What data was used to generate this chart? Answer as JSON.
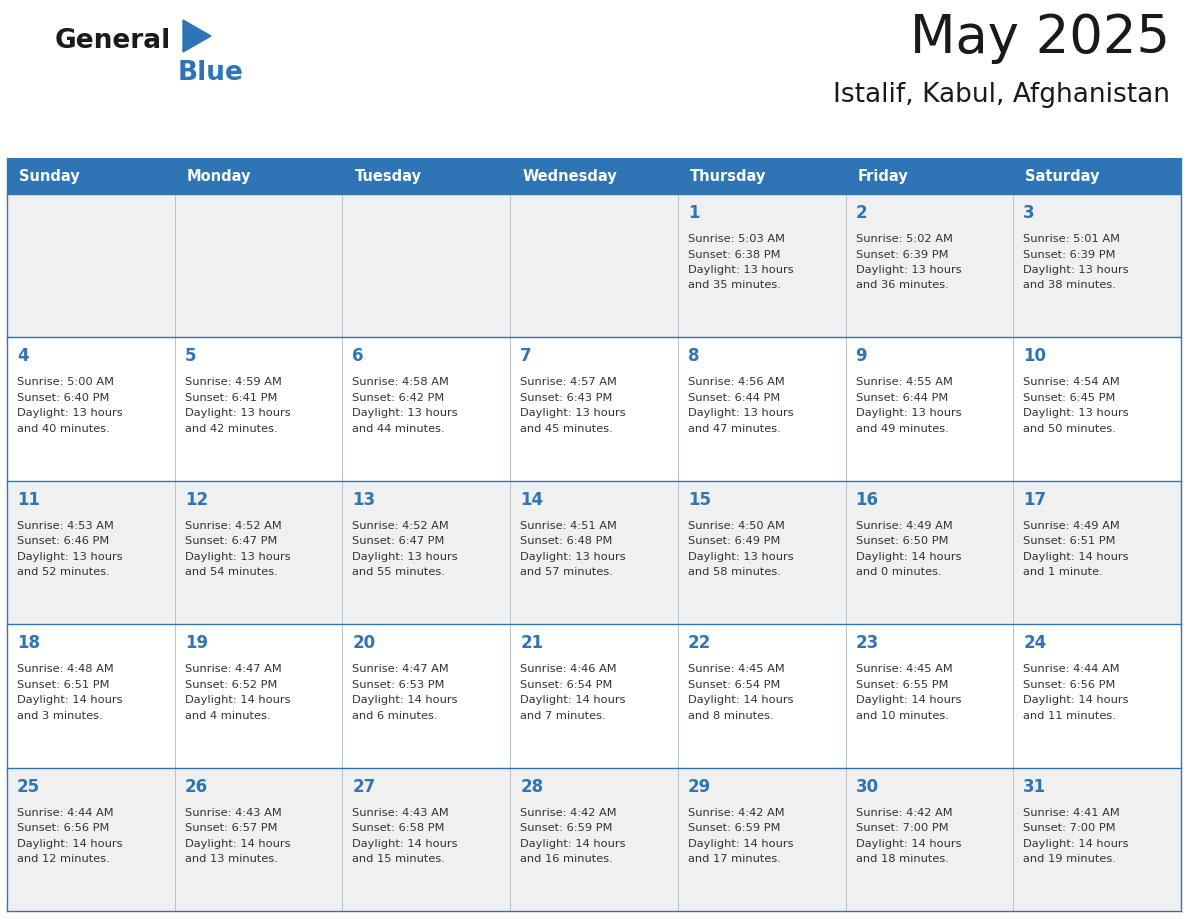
{
  "title": "May 2025",
  "subtitle": "Istalif, Kabul, Afghanistan",
  "header_bg": "#2e75b6",
  "header_text_color": "#ffffff",
  "day_names": [
    "Sunday",
    "Monday",
    "Tuesday",
    "Wednesday",
    "Thursday",
    "Friday",
    "Saturday"
  ],
  "bg_color": "#ffffff",
  "cell_bg_row0": "#f0f0f0",
  "cell_bg_row1": "#ffffff",
  "cell_bg_row2": "#f0f0f0",
  "cell_bg_row3": "#ffffff",
  "cell_bg_row4": "#f0f0f0",
  "grid_color": "#2e75b6",
  "title_color": "#1a1a1a",
  "subtitle_color": "#1a1a1a",
  "day_num_color": "#2e75b6",
  "text_color": "#333333",
  "calendar": [
    [
      null,
      null,
      null,
      null,
      {
        "day": 1,
        "sunrise": "5:03 AM",
        "sunset": "6:38 PM",
        "daylight_h": "13 hours",
        "daylight_m": "and 35 minutes."
      },
      {
        "day": 2,
        "sunrise": "5:02 AM",
        "sunset": "6:39 PM",
        "daylight_h": "13 hours",
        "daylight_m": "and 36 minutes."
      },
      {
        "day": 3,
        "sunrise": "5:01 AM",
        "sunset": "6:39 PM",
        "daylight_h": "13 hours",
        "daylight_m": "and 38 minutes."
      }
    ],
    [
      {
        "day": 4,
        "sunrise": "5:00 AM",
        "sunset": "6:40 PM",
        "daylight_h": "13 hours",
        "daylight_m": "and 40 minutes."
      },
      {
        "day": 5,
        "sunrise": "4:59 AM",
        "sunset": "6:41 PM",
        "daylight_h": "13 hours",
        "daylight_m": "and 42 minutes."
      },
      {
        "day": 6,
        "sunrise": "4:58 AM",
        "sunset": "6:42 PM",
        "daylight_h": "13 hours",
        "daylight_m": "and 44 minutes."
      },
      {
        "day": 7,
        "sunrise": "4:57 AM",
        "sunset": "6:43 PM",
        "daylight_h": "13 hours",
        "daylight_m": "and 45 minutes."
      },
      {
        "day": 8,
        "sunrise": "4:56 AM",
        "sunset": "6:44 PM",
        "daylight_h": "13 hours",
        "daylight_m": "and 47 minutes."
      },
      {
        "day": 9,
        "sunrise": "4:55 AM",
        "sunset": "6:44 PM",
        "daylight_h": "13 hours",
        "daylight_m": "and 49 minutes."
      },
      {
        "day": 10,
        "sunrise": "4:54 AM",
        "sunset": "6:45 PM",
        "daylight_h": "13 hours",
        "daylight_m": "and 50 minutes."
      }
    ],
    [
      {
        "day": 11,
        "sunrise": "4:53 AM",
        "sunset": "6:46 PM",
        "daylight_h": "13 hours",
        "daylight_m": "and 52 minutes."
      },
      {
        "day": 12,
        "sunrise": "4:52 AM",
        "sunset": "6:47 PM",
        "daylight_h": "13 hours",
        "daylight_m": "and 54 minutes."
      },
      {
        "day": 13,
        "sunrise": "4:52 AM",
        "sunset": "6:47 PM",
        "daylight_h": "13 hours",
        "daylight_m": "and 55 minutes."
      },
      {
        "day": 14,
        "sunrise": "4:51 AM",
        "sunset": "6:48 PM",
        "daylight_h": "13 hours",
        "daylight_m": "and 57 minutes."
      },
      {
        "day": 15,
        "sunrise": "4:50 AM",
        "sunset": "6:49 PM",
        "daylight_h": "13 hours",
        "daylight_m": "and 58 minutes."
      },
      {
        "day": 16,
        "sunrise": "4:49 AM",
        "sunset": "6:50 PM",
        "daylight_h": "14 hours",
        "daylight_m": "and 0 minutes."
      },
      {
        "day": 17,
        "sunrise": "4:49 AM",
        "sunset": "6:51 PM",
        "daylight_h": "14 hours",
        "daylight_m": "and 1 minute."
      }
    ],
    [
      {
        "day": 18,
        "sunrise": "4:48 AM",
        "sunset": "6:51 PM",
        "daylight_h": "14 hours",
        "daylight_m": "and 3 minutes."
      },
      {
        "day": 19,
        "sunrise": "4:47 AM",
        "sunset": "6:52 PM",
        "daylight_h": "14 hours",
        "daylight_m": "and 4 minutes."
      },
      {
        "day": 20,
        "sunrise": "4:47 AM",
        "sunset": "6:53 PM",
        "daylight_h": "14 hours",
        "daylight_m": "and 6 minutes."
      },
      {
        "day": 21,
        "sunrise": "4:46 AM",
        "sunset": "6:54 PM",
        "daylight_h": "14 hours",
        "daylight_m": "and 7 minutes."
      },
      {
        "day": 22,
        "sunrise": "4:45 AM",
        "sunset": "6:54 PM",
        "daylight_h": "14 hours",
        "daylight_m": "and 8 minutes."
      },
      {
        "day": 23,
        "sunrise": "4:45 AM",
        "sunset": "6:55 PM",
        "daylight_h": "14 hours",
        "daylight_m": "and 10 minutes."
      },
      {
        "day": 24,
        "sunrise": "4:44 AM",
        "sunset": "6:56 PM",
        "daylight_h": "14 hours",
        "daylight_m": "and 11 minutes."
      }
    ],
    [
      {
        "day": 25,
        "sunrise": "4:44 AM",
        "sunset": "6:56 PM",
        "daylight_h": "14 hours",
        "daylight_m": "and 12 minutes."
      },
      {
        "day": 26,
        "sunrise": "4:43 AM",
        "sunset": "6:57 PM",
        "daylight_h": "14 hours",
        "daylight_m": "and 13 minutes."
      },
      {
        "day": 27,
        "sunrise": "4:43 AM",
        "sunset": "6:58 PM",
        "daylight_h": "14 hours",
        "daylight_m": "and 15 minutes."
      },
      {
        "day": 28,
        "sunrise": "4:42 AM",
        "sunset": "6:59 PM",
        "daylight_h": "14 hours",
        "daylight_m": "and 16 minutes."
      },
      {
        "day": 29,
        "sunrise": "4:42 AM",
        "sunset": "6:59 PM",
        "daylight_h": "14 hours",
        "daylight_m": "and 17 minutes."
      },
      {
        "day": 30,
        "sunrise": "4:42 AM",
        "sunset": "7:00 PM",
        "daylight_h": "14 hours",
        "daylight_m": "and 18 minutes."
      },
      {
        "day": 31,
        "sunrise": "4:41 AM",
        "sunset": "7:00 PM",
        "daylight_h": "14 hours",
        "daylight_m": "and 19 minutes."
      }
    ]
  ]
}
